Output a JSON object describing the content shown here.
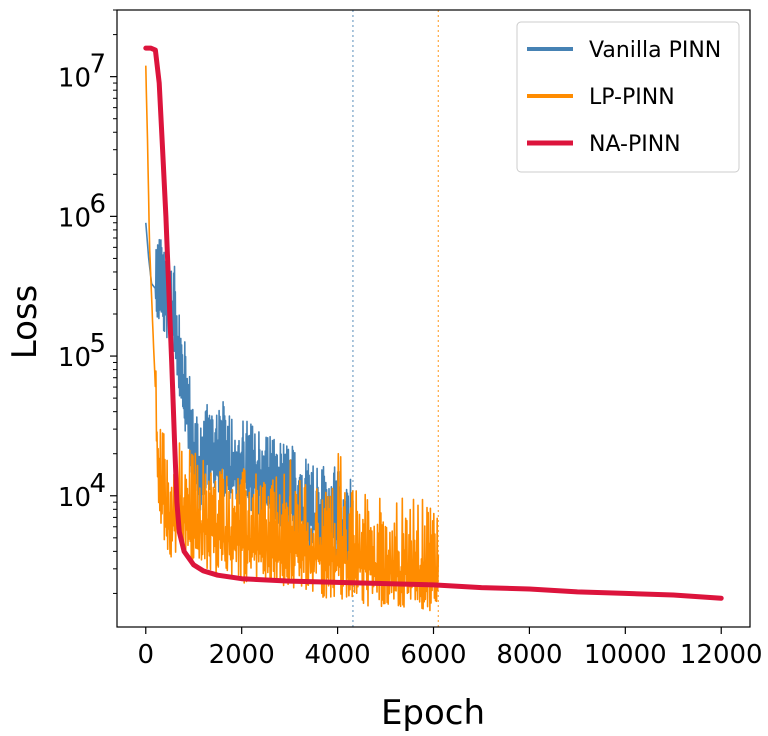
{
  "chart_data": {
    "type": "line",
    "xlabel": "Epoch",
    "ylabel": "Loss",
    "yscale": "log",
    "xlim": [
      -600,
      12600
    ],
    "ylim": [
      1150,
      30000000
    ],
    "x_ticks": [
      0,
      2000,
      4000,
      6000,
      8000,
      10000,
      12000
    ],
    "x_tick_labels": [
      "0",
      "2000",
      "4000",
      "6000",
      "8000",
      "10000",
      "12000"
    ],
    "y_ticks": [
      10000,
      100000,
      1000000,
      10000000
    ],
    "y_tick_labels": [
      {
        "base": "10",
        "exp": "4"
      },
      {
        "base": "10",
        "exp": "5"
      },
      {
        "base": "10",
        "exp": "6"
      },
      {
        "base": "10",
        "exp": "7"
      }
    ],
    "legend": {
      "position": "top-right"
    },
    "vlines": [
      {
        "x": 4320,
        "color": "#4682b4",
        "style": "dotted"
      },
      {
        "x": 6100,
        "color": "#ff8c00",
        "style": "dotted"
      }
    ],
    "series": [
      {
        "name": "Vanilla PINN",
        "color": "#4682b4",
        "noisy": true,
        "points": [
          [
            0,
            900000
          ],
          [
            60,
            500000
          ],
          [
            120,
            330000
          ],
          [
            250,
            290000
          ],
          [
            400,
            230000
          ],
          [
            550,
            200000
          ],
          [
            650,
            120000
          ],
          [
            750,
            60000
          ],
          [
            850,
            40000
          ],
          [
            950,
            22000
          ],
          [
            1100,
            12000
          ],
          [
            1300,
            20000
          ],
          [
            1500,
            18000
          ],
          [
            1800,
            15000
          ],
          [
            2200,
            12000
          ],
          [
            2600,
            10000
          ],
          [
            3000,
            8500
          ],
          [
            3400,
            7000
          ],
          [
            3800,
            6000
          ],
          [
            4200,
            5200
          ],
          [
            4320,
            5000
          ]
        ]
      },
      {
        "name": "LP-PINN",
        "color": "#ff8c00",
        "noisy": true,
        "points": [
          [
            0,
            12000000
          ],
          [
            40,
            3000000
          ],
          [
            80,
            600000
          ],
          [
            150,
            150000
          ],
          [
            200,
            60000
          ],
          [
            250,
            14000
          ],
          [
            350,
            9000
          ],
          [
            500,
            6500
          ],
          [
            700,
            7000
          ],
          [
            1000,
            6000
          ],
          [
            1500,
            5000
          ],
          [
            2000,
            4500
          ],
          [
            2500,
            4200
          ],
          [
            3000,
            4000
          ],
          [
            3500,
            3600
          ],
          [
            4000,
            3400
          ],
          [
            4500,
            3100
          ],
          [
            5000,
            2900
          ],
          [
            5500,
            2750
          ],
          [
            6100,
            2600
          ]
        ]
      },
      {
        "name": "NA-PINN",
        "color": "#dc143c",
        "noisy": false,
        "points": [
          [
            0,
            16000000
          ],
          [
            100,
            16000000
          ],
          [
            200,
            15500000
          ],
          [
            280,
            9000000
          ],
          [
            350,
            3000000
          ],
          [
            420,
            1000000
          ],
          [
            480,
            300000
          ],
          [
            540,
            90000
          ],
          [
            600,
            25000
          ],
          [
            650,
            9000
          ],
          [
            700,
            5500
          ],
          [
            800,
            4000
          ],
          [
            1000,
            3200
          ],
          [
            1200,
            2900
          ],
          [
            1500,
            2700
          ],
          [
            2000,
            2550
          ],
          [
            3000,
            2450
          ],
          [
            4000,
            2400
          ],
          [
            5000,
            2350
          ],
          [
            6000,
            2300
          ],
          [
            7000,
            2200
          ],
          [
            8000,
            2150
          ],
          [
            9000,
            2050
          ],
          [
            10000,
            2000
          ],
          [
            11000,
            1950
          ],
          [
            12000,
            1850
          ]
        ]
      }
    ]
  }
}
